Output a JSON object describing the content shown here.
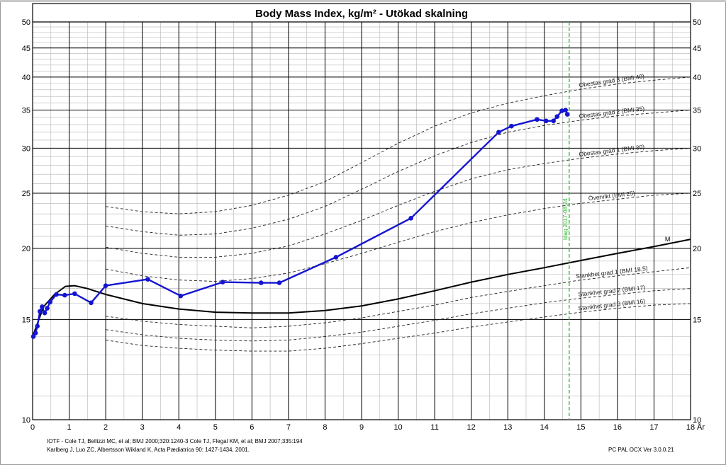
{
  "chart_data": {
    "type": "line",
    "title": "Body Mass Index, kg/m² - Utökad skalning",
    "xlabel": "År",
    "ylabel": "",
    "x_range": [
      0,
      18
    ],
    "y_range": [
      10,
      50
    ],
    "y_scale": "log",
    "y_ticks": [
      10,
      15,
      20,
      25,
      30,
      35,
      40,
      45,
      50
    ],
    "x_ticks": [
      0,
      1,
      2,
      3,
      4,
      5,
      6,
      7,
      8,
      9,
      10,
      11,
      12,
      13,
      14,
      15,
      16,
      17,
      18
    ],
    "grid": true,
    "today_marker": {
      "label": "Idag 2017-08-24",
      "x": 14.68,
      "color": "#22bb22"
    },
    "patient": {
      "color": "#1414d2",
      "points": [
        [
          0.02,
          14.0
        ],
        [
          0.08,
          14.2
        ],
        [
          0.13,
          14.6
        ],
        [
          0.2,
          15.5
        ],
        [
          0.26,
          15.8
        ],
        [
          0.33,
          15.4
        ],
        [
          0.4,
          15.7
        ],
        [
          0.48,
          16.1
        ],
        [
          0.65,
          16.6
        ],
        [
          0.88,
          16.55
        ],
        [
          1.15,
          16.65
        ],
        [
          1.6,
          16.05
        ],
        [
          2.0,
          17.2
        ],
        [
          3.15,
          17.65
        ],
        [
          4.05,
          16.5
        ],
        [
          5.2,
          17.45
        ],
        [
          6.25,
          17.4
        ],
        [
          6.75,
          17.4
        ],
        [
          8.3,
          19.3
        ],
        [
          10.35,
          22.6
        ],
        [
          12.75,
          32.0
        ],
        [
          13.1,
          32.8
        ],
        [
          13.8,
          33.7
        ],
        [
          14.05,
          33.5
        ],
        [
          14.25,
          33.5
        ],
        [
          14.35,
          34.1
        ],
        [
          14.48,
          34.9
        ],
        [
          14.58,
          35.0
        ],
        [
          14.63,
          34.4
        ]
      ]
    },
    "median": {
      "label": "M",
      "points": [
        [
          0,
          14.0
        ],
        [
          0.3,
          15.8
        ],
        [
          0.6,
          16.6
        ],
        [
          0.9,
          17.15
        ],
        [
          1.15,
          17.2
        ],
        [
          1.5,
          17.0
        ],
        [
          2,
          16.6
        ],
        [
          3,
          16.0
        ],
        [
          4,
          15.65
        ],
        [
          5,
          15.45
        ],
        [
          6,
          15.4
        ],
        [
          7,
          15.4
        ],
        [
          8,
          15.55
        ],
        [
          9,
          15.85
        ],
        [
          10,
          16.3
        ],
        [
          11,
          16.85
        ],
        [
          12,
          17.45
        ],
        [
          13,
          18.0
        ],
        [
          14,
          18.5
        ],
        [
          15,
          19.05
        ],
        [
          16,
          19.6
        ],
        [
          17,
          20.15
        ],
        [
          18,
          20.75
        ]
      ]
    },
    "reference_curves": [
      {
        "label": "Obestas grad 3 (BMI 40)",
        "points": [
          [
            2,
            23.7
          ],
          [
            3,
            23.2
          ],
          [
            4,
            23.0
          ],
          [
            5,
            23.2
          ],
          [
            6,
            23.8
          ],
          [
            7,
            24.8
          ],
          [
            8,
            26.2
          ],
          [
            9,
            28.3
          ],
          [
            10,
            30.6
          ],
          [
            11,
            32.8
          ],
          [
            12,
            34.6
          ],
          [
            13,
            36.0
          ],
          [
            14,
            37.1
          ],
          [
            15,
            38.1
          ],
          [
            16,
            38.9
          ],
          [
            17,
            39.5
          ],
          [
            18,
            40.0
          ]
        ]
      },
      {
        "label": "Obestas grad 2 (BMI 35)",
        "points": [
          [
            2,
            21.9
          ],
          [
            3,
            21.4
          ],
          [
            4,
            21.1
          ],
          [
            5,
            21.2
          ],
          [
            6,
            21.7
          ],
          [
            7,
            22.5
          ],
          [
            8,
            23.7
          ],
          [
            9,
            25.4
          ],
          [
            10,
            27.3
          ],
          [
            11,
            29.1
          ],
          [
            12,
            30.7
          ],
          [
            13,
            32.0
          ],
          [
            14,
            32.9
          ],
          [
            15,
            33.6
          ],
          [
            16,
            34.2
          ],
          [
            17,
            34.6
          ],
          [
            18,
            35.0
          ]
        ]
      },
      {
        "label": "Obestas grad 1 (BMI 30)",
        "points": [
          [
            2,
            20.1
          ],
          [
            3,
            19.6
          ],
          [
            4,
            19.3
          ],
          [
            5,
            19.3
          ],
          [
            6,
            19.6
          ],
          [
            7,
            20.2
          ],
          [
            8,
            21.2
          ],
          [
            9,
            22.4
          ],
          [
            10,
            23.8
          ],
          [
            11,
            25.2
          ],
          [
            12,
            26.5
          ],
          [
            13,
            27.5
          ],
          [
            14,
            28.2
          ],
          [
            15,
            28.8
          ],
          [
            16,
            29.3
          ],
          [
            17,
            29.7
          ],
          [
            18,
            30.0
          ]
        ]
      },
      {
        "label": "Övervikt (BMI 25)",
        "points": [
          [
            2,
            18.4
          ],
          [
            3,
            17.9
          ],
          [
            4,
            17.6
          ],
          [
            5,
            17.5
          ],
          [
            6,
            17.7
          ],
          [
            7,
            18.1
          ],
          [
            8,
            18.8
          ],
          [
            9,
            19.6
          ],
          [
            10,
            20.5
          ],
          [
            11,
            21.4
          ],
          [
            12,
            22.2
          ],
          [
            13,
            22.9
          ],
          [
            14,
            23.5
          ],
          [
            15,
            24.0
          ],
          [
            16,
            24.4
          ],
          [
            17,
            24.8
          ],
          [
            18,
            25.0
          ]
        ]
      },
      {
        "label": "Stankhet grad 1 (BMI 18,5)",
        "points": [
          [
            2,
            15.2
          ],
          [
            3,
            14.9
          ],
          [
            4,
            14.7
          ],
          [
            5,
            14.6
          ],
          [
            6,
            14.5
          ],
          [
            7,
            14.6
          ],
          [
            8,
            14.8
          ],
          [
            9,
            15.1
          ],
          [
            10,
            15.5
          ],
          [
            11,
            15.9
          ],
          [
            12,
            16.4
          ],
          [
            13,
            16.8
          ],
          [
            14,
            17.2
          ],
          [
            15,
            17.6
          ],
          [
            16,
            17.9
          ],
          [
            17,
            18.2
          ],
          [
            18,
            18.5
          ]
        ]
      },
      {
        "label": "Stankhet grad 2 (BMI 17)",
        "points": [
          [
            2,
            14.4
          ],
          [
            3,
            14.1
          ],
          [
            4,
            13.9
          ],
          [
            5,
            13.8
          ],
          [
            6,
            13.75
          ],
          [
            7,
            13.8
          ],
          [
            8,
            14.0
          ],
          [
            9,
            14.25
          ],
          [
            10,
            14.6
          ],
          [
            11,
            14.95
          ],
          [
            12,
            15.35
          ],
          [
            13,
            15.7
          ],
          [
            14,
            16.05
          ],
          [
            15,
            16.35
          ],
          [
            16,
            16.6
          ],
          [
            17,
            16.85
          ],
          [
            18,
            17.0
          ]
        ]
      },
      {
        "label": "Stankhet grad 3 (BMI 16)",
        "points": [
          [
            2,
            13.8
          ],
          [
            3,
            13.5
          ],
          [
            4,
            13.35
          ],
          [
            5,
            13.25
          ],
          [
            6,
            13.2
          ],
          [
            7,
            13.2
          ],
          [
            8,
            13.35
          ],
          [
            9,
            13.6
          ],
          [
            10,
            13.9
          ],
          [
            11,
            14.2
          ],
          [
            12,
            14.55
          ],
          [
            13,
            14.85
          ],
          [
            14,
            15.15
          ],
          [
            15,
            15.45
          ],
          [
            16,
            15.7
          ],
          [
            17,
            15.9
          ],
          [
            18,
            16.0
          ]
        ]
      }
    ]
  },
  "footer": {
    "reference_1": "IOTF - Cole TJ, Bellizzi MC, et al; BMJ 2000;320:1240-3 Cole TJ, Flegal KM, et al; BMJ 2007;335:194",
    "reference_2": "Karlberg J, Luo ZC, Albertsson Wikland K, Acta Pædiatrica 90: 1427-1434, 2001.",
    "version": "PC PAL OCX Ver 3.0.0.21"
  }
}
